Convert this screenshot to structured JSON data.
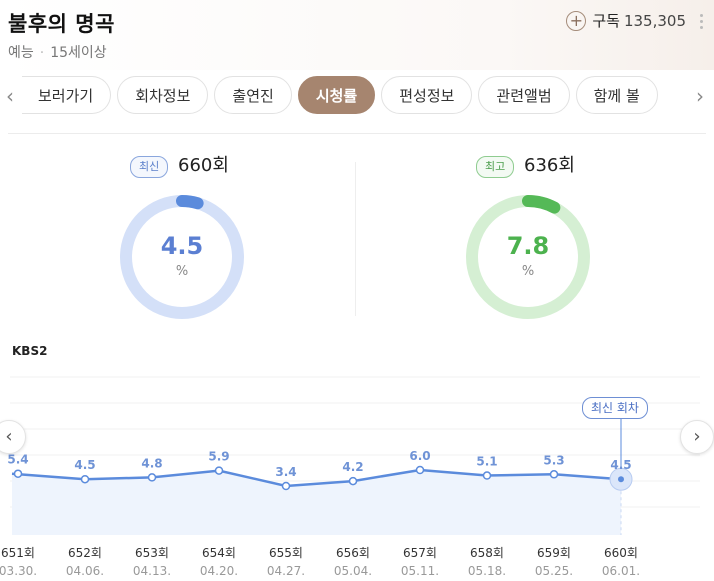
{
  "header": {
    "title": "불후의 명곡",
    "category": "예능",
    "age_rating": "15세이상",
    "subscribe_label": "구독",
    "subscribe_count": "135,305"
  },
  "tabs": [
    {
      "label": "보러가기"
    },
    {
      "label": "회차정보"
    },
    {
      "label": "출연진"
    },
    {
      "label": "시청률",
      "active": true
    },
    {
      "label": "편성정보"
    },
    {
      "label": "관련앨범"
    },
    {
      "label": "함께 볼"
    }
  ],
  "ratings": {
    "latest": {
      "badge": "최신",
      "episode": "660회",
      "value": "4.5",
      "unit": "%",
      "fraction": 0.045
    },
    "highest": {
      "badge": "최고",
      "episode": "636회",
      "value": "7.8",
      "unit": "%",
      "fraction": 0.078
    }
  },
  "chart_data": {
    "type": "area",
    "network": "KBS2",
    "categories": [
      "651회",
      "652회",
      "653회",
      "654회",
      "655회",
      "656회",
      "657회",
      "658회",
      "659회",
      "660회"
    ],
    "dates": [
      "03.30.",
      "04.06.",
      "04.13.",
      "04.20.",
      "04.27.",
      "05.04.",
      "05.11.",
      "05.18.",
      "05.25.",
      "06.01."
    ],
    "values": [
      5.4,
      4.5,
      4.8,
      5.9,
      3.4,
      4.2,
      6.0,
      5.1,
      5.3,
      4.5
    ],
    "latest_label": "최신 회차",
    "colors": {
      "line": "#5b8bdc",
      "fill": "#eef4fd",
      "ring_latest": "#5b8bdc",
      "ring_latest_bg": "#d4e0f8",
      "ring_highest": "#55b957",
      "ring_highest_bg": "#d5efd3"
    }
  }
}
